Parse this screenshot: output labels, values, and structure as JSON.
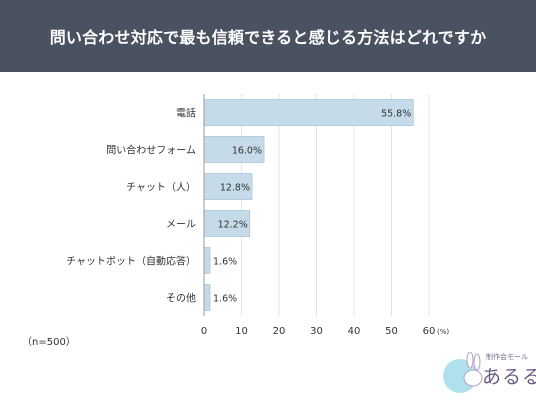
{
  "header": {
    "title": "問い合わせ対応で最も信頼できると感じる方法はどれですか"
  },
  "chart_data": {
    "type": "bar",
    "orientation": "horizontal",
    "categories": [
      "電話",
      "問い合わせフォーム",
      "チャット（人）",
      "メール",
      "チャットボット（自動応答）",
      "その他"
    ],
    "values": [
      55.8,
      16.0,
      12.8,
      12.2,
      1.6,
      1.6
    ],
    "value_labels": [
      "55.8%",
      "16.0%",
      "12.8%",
      "12.2%",
      "1.6%",
      "1.6%"
    ],
    "xlim": [
      0,
      60
    ],
    "xticks": [
      0,
      10,
      20,
      30,
      40,
      50,
      60
    ],
    "x_unit": "(%)",
    "grid": true,
    "bar_color": "#c5dbea",
    "bar_edge_color": "#a9c6da"
  },
  "footer": {
    "sample_note": "（n=500）"
  },
  "logo": {
    "sub_text": "制作会モール",
    "main_text": "あるる"
  }
}
